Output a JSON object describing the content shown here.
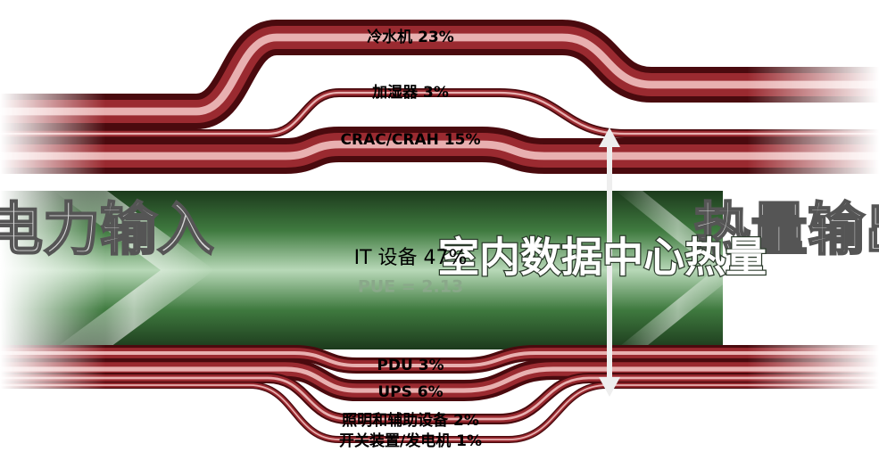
{
  "input_label": "电力输入",
  "output_label": "热量输出",
  "heat_label": "室内数据中心热量",
  "it": {
    "label": "IT 设备 47%",
    "pue": "PUE = 2.13"
  },
  "flows": [
    {
      "label": "冷水机 23%"
    },
    {
      "label": "加湿器 3%"
    },
    {
      "label": "CRAC/CRAH 15%"
    },
    {
      "label": "PDU 3%"
    },
    {
      "label": "UPS 6%"
    },
    {
      "label": "照明和辅助设备 2%"
    },
    {
      "label": "开关装置/发电机 1%"
    }
  ]
}
